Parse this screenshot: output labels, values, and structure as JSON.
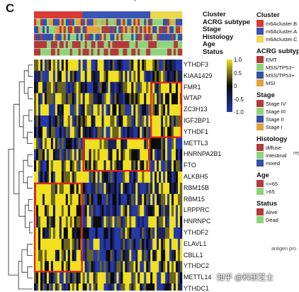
{
  "panel_letter": "C",
  "watermark": "知乎 @科研芝士",
  "side_texts": {
    "top": "Po",
    "mid": "reg",
    "bottom": "antigen pro"
  },
  "colors": {
    "high": "#f0e020",
    "mid": "#0b0b0b",
    "low": "#2438a8",
    "box": "#e02020"
  },
  "chart_data": {
    "type": "heatmap",
    "color_scale": {
      "ticks": [
        "1.0",
        "0.5",
        "0",
        "-0.5",
        "-1.0"
      ]
    },
    "annotation_tracks": [
      "Cluster",
      "ACRG subtype",
      "Stage",
      "Histology",
      "Age",
      "Status"
    ],
    "genes": [
      "YTHDF3",
      "KIAA1429",
      "FMR1",
      "WTAP",
      "ZC3H13",
      "IGF2BP1",
      "YTHDF1",
      "METTL3",
      "HNRNPA2B1",
      "FTO",
      "ALKBH5",
      "RBM15B",
      "RBM15",
      "LRPPRC",
      "HNRNPC",
      "YTHDF2",
      "ELAVL1",
      "CBLL1",
      "YTHDC2",
      "METTL14",
      "YTHDC1"
    ],
    "legends": [
      {
        "title": "Cluster",
        "items": [
          {
            "label": "m6Acluster.B",
            "color": "#d83a34"
          },
          {
            "label": "m6Acluster.A",
            "color": "#3a54b4"
          },
          {
            "label": "m6Acluster.C",
            "color": "#ecd84a"
          }
        ]
      },
      {
        "title": "ACRG subtype",
        "items": [
          {
            "label": "EMT",
            "color": "#b23a3a"
          },
          {
            "label": "MSS/TP53−",
            "color": "#8fd47c"
          },
          {
            "label": "MSS/TP53+",
            "color": "#3550a8"
          },
          {
            "label": "MSI",
            "color": "#e3a33c"
          }
        ]
      },
      {
        "title": "Stage",
        "items": [
          {
            "label": "Stage IV",
            "color": "#b23a3a"
          },
          {
            "label": "Stage III",
            "color": "#8fd47c"
          },
          {
            "label": "Stage II",
            "color": "#3550a8"
          },
          {
            "label": "Stage I",
            "color": "#e3a33c"
          }
        ]
      },
      {
        "title": "Histology",
        "items": [
          {
            "label": "diffuse",
            "color": "#b23a3a"
          },
          {
            "label": "intestinal",
            "color": "#8fd47c"
          },
          {
            "label": "mixed",
            "color": "#3550a8"
          }
        ]
      },
      {
        "title": "Age",
        "items": [
          {
            "label": "<=65",
            "color": "#b23a3a"
          },
          {
            "label": ">65",
            "color": "#8fd47c"
          }
        ]
      },
      {
        "title": "Status",
        "items": [
          {
            "label": "Alive",
            "color": "#b23a3a"
          },
          {
            "label": "Dead",
            "color": "#8fd47c"
          }
        ]
      }
    ],
    "highlight_boxes": [
      {
        "cluster": "m6Acluster.C",
        "genes": [
          "FMR1",
          "WTAP",
          "ZC3H13",
          "IGF2BP1",
          "YTHDF1"
        ]
      },
      {
        "cluster": "m6Acluster.A",
        "genes": [
          "METTL3",
          "HNRNPA2B1",
          "FTO"
        ]
      },
      {
        "cluster": "m6Acluster.B",
        "genes": [
          "RBM15B",
          "RBM15",
          "LRPPRC",
          "HNRNPC",
          "YTHDF2",
          "ELAVL1",
          "CBLL1",
          "YTHDC2"
        ]
      }
    ]
  }
}
